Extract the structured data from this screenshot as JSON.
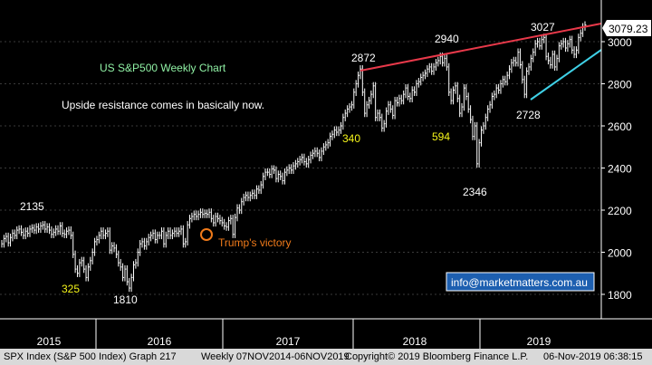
{
  "chart_data": {
    "type": "line",
    "title": "US S&P500 Weekly Chart",
    "subtitle": "Upside resistance comes in basically now.",
    "x_labels": [
      "2015",
      "2016",
      "2017",
      "2018",
      "2019"
    ],
    "y_ticks": [
      1800,
      2000,
      2200,
      2400,
      2600,
      2800,
      3000
    ],
    "ylim": [
      1700,
      3100
    ],
    "last_price_label": "3079.23",
    "last_price": 3079.23,
    "series": [
      {
        "values": [
          2040,
          2065,
          2075,
          2045,
          2070,
          2090,
          2080,
          2105,
          2110,
          2095,
          2080,
          2100,
          2090,
          2110,
          2115,
          2105,
          2120,
          2110,
          2125,
          2130,
          2110,
          2120,
          2105,
          2085,
          2095,
          2110,
          2100,
          2125,
          2090,
          2085,
          2100,
          2105,
          2080,
          1990,
          1920,
          1900,
          1950,
          1960,
          1920,
          1880,
          1930,
          1960,
          2000,
          2050,
          2060,
          2080,
          2100,
          2080,
          2090,
          2100,
          2010,
          2030,
          2020,
          1990,
          1950,
          1930,
          1880,
          1920,
          1860,
          1830,
          1880,
          1940,
          1950,
          2000,
          2040,
          2050,
          2030,
          2050,
          2070,
          2080,
          2090,
          2060,
          2080,
          2080,
          2100,
          2040,
          2080,
          2100,
          2080,
          2090,
          2100,
          2090,
          2100,
          2110,
          2040,
          2050,
          2130,
          2160,
          2170,
          2180,
          2170,
          2180,
          2190,
          2180,
          2185,
          2180,
          2190,
          2160,
          2140,
          2170,
          2160,
          2150,
          2140,
          2125,
          2120,
          2150,
          2160,
          2085,
          2165,
          2210,
          2200,
          2240,
          2260,
          2270,
          2260,
          2270,
          2280,
          2270,
          2300,
          2295,
          2320,
          2360,
          2380,
          2380,
          2370,
          2395,
          2390,
          2350,
          2370,
          2360,
          2340,
          2380,
          2390,
          2400,
          2390,
          2410,
          2420,
          2430,
          2440,
          2450,
          2430,
          2420,
          2440,
          2460,
          2470,
          2480,
          2470,
          2450,
          2480,
          2500,
          2510,
          2520,
          2550,
          2560,
          2580,
          2570,
          2580,
          2600,
          2640,
          2660,
          2680,
          2690,
          2700,
          2760,
          2800,
          2840,
          2870,
          2760,
          2660,
          2700,
          2720,
          2750,
          2790,
          2640,
          2660,
          2640,
          2590,
          2610,
          2670,
          2700,
          2680,
          2650,
          2720,
          2710,
          2730,
          2720,
          2750,
          2780,
          2740,
          2730,
          2770,
          2760,
          2800,
          2810,
          2830,
          2840,
          2850,
          2870,
          2880,
          2860,
          2880,
          2900,
          2910,
          2930,
          2900,
          2920,
          2880,
          2760,
          2720,
          2770,
          2790,
          2730,
          2660,
          2690,
          2780,
          2740,
          2680,
          2630,
          2550,
          2600,
          2420,
          2520,
          2580,
          2600,
          2640,
          2680,
          2700,
          2740,
          2750,
          2780,
          2770,
          2800,
          2820,
          2810,
          2840,
          2870,
          2900,
          2910,
          2900,
          2950,
          2890,
          2820,
          2750,
          2860,
          2880,
          2920,
          2950,
          2990,
          3000,
          2980,
          3010,
          3020,
          2930,
          2910,
          2890,
          2940,
          2880,
          2920,
          2980,
          2990,
          3000,
          2970,
          2990,
          3010,
          2960,
          2940,
          2960,
          3020,
          3040,
          3070,
          3079
        ]
      }
    ],
    "annotations": [
      {
        "text": "2135",
        "value": 2135
      },
      {
        "text": "325"
      },
      {
        "text": "1810",
        "value": 1810
      },
      {
        "text": "Trump's victory"
      },
      {
        "text": "2872",
        "value": 2872
      },
      {
        "text": "340"
      },
      {
        "text": "2940",
        "value": 2940
      },
      {
        "text": "594"
      },
      {
        "text": "2346",
        "value": 2346
      },
      {
        "text": "3027",
        "value": 3027
      },
      {
        "text": "2728",
        "value": 2728
      }
    ],
    "watermark": "info@marketmatters.com.au",
    "colors": {
      "price": "#ffffff",
      "resistance": "#e8394a",
      "support": "#3fd0e6",
      "white_label": "#ffffff",
      "yellow_label": "#f5f51a",
      "green_label": "#8ff0a4",
      "event_label": "#f07a1a",
      "background": "#000000"
    }
  },
  "footer": {
    "index_label": "SPX Index (S&P 500 Index) Graph 217",
    "period": "Weekly 07NOV2014-06NOV2019",
    "copyright": "Copyright© 2019 Bloomberg Finance L.P.",
    "timestamp": "06-Nov-2019 06:38:15"
  }
}
